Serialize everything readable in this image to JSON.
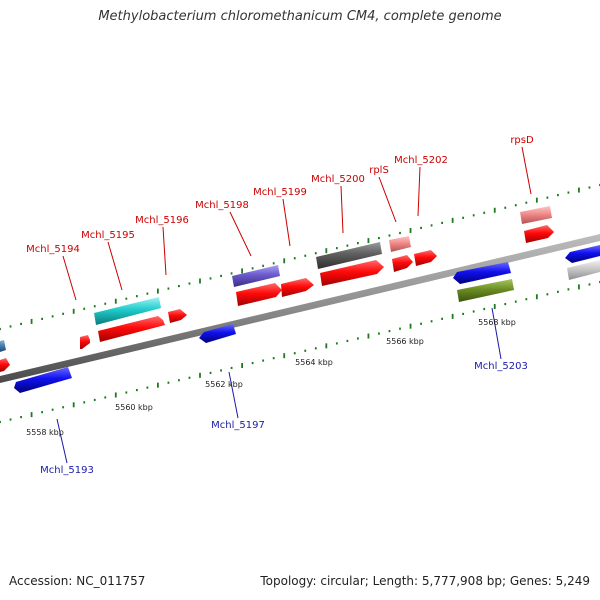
{
  "title": "Methylobacterium chloromethanicum CM4, complete genome",
  "footer": {
    "accession": "Accession: NC_011757",
    "summary": "Topology: circular; Length: 5,777,908 bp; Genes: 5,249"
  },
  "colors": {
    "forward_label": "#cc0000",
    "reverse_label": "#1a1aa8",
    "tick": "#1f7a1f",
    "axis": "#8c8c8c"
  },
  "scale_labels": [
    "5558 kbp",
    "5560 kbp",
    "5562 kbp",
    "5564 kbp",
    "5566 kbp",
    "5568 kbp"
  ],
  "genes": [
    {
      "label": "Mchl_5194",
      "strand": "forward"
    },
    {
      "label": "Mchl_5195",
      "strand": "forward"
    },
    {
      "label": "Mchl_5196",
      "strand": "forward"
    },
    {
      "label": "Mchl_5198",
      "strand": "forward"
    },
    {
      "label": "Mchl_5199",
      "strand": "forward"
    },
    {
      "label": "Mchl_5200",
      "strand": "forward"
    },
    {
      "label": "rplS",
      "strand": "forward"
    },
    {
      "label": "Mchl_5202",
      "strand": "forward"
    },
    {
      "label": "rpsD",
      "strand": "forward"
    },
    {
      "label": "Mchl_5193",
      "strand": "reverse"
    },
    {
      "label": "Mchl_5197",
      "strand": "reverse"
    },
    {
      "label": "Mchl_5203",
      "strand": "reverse"
    }
  ]
}
